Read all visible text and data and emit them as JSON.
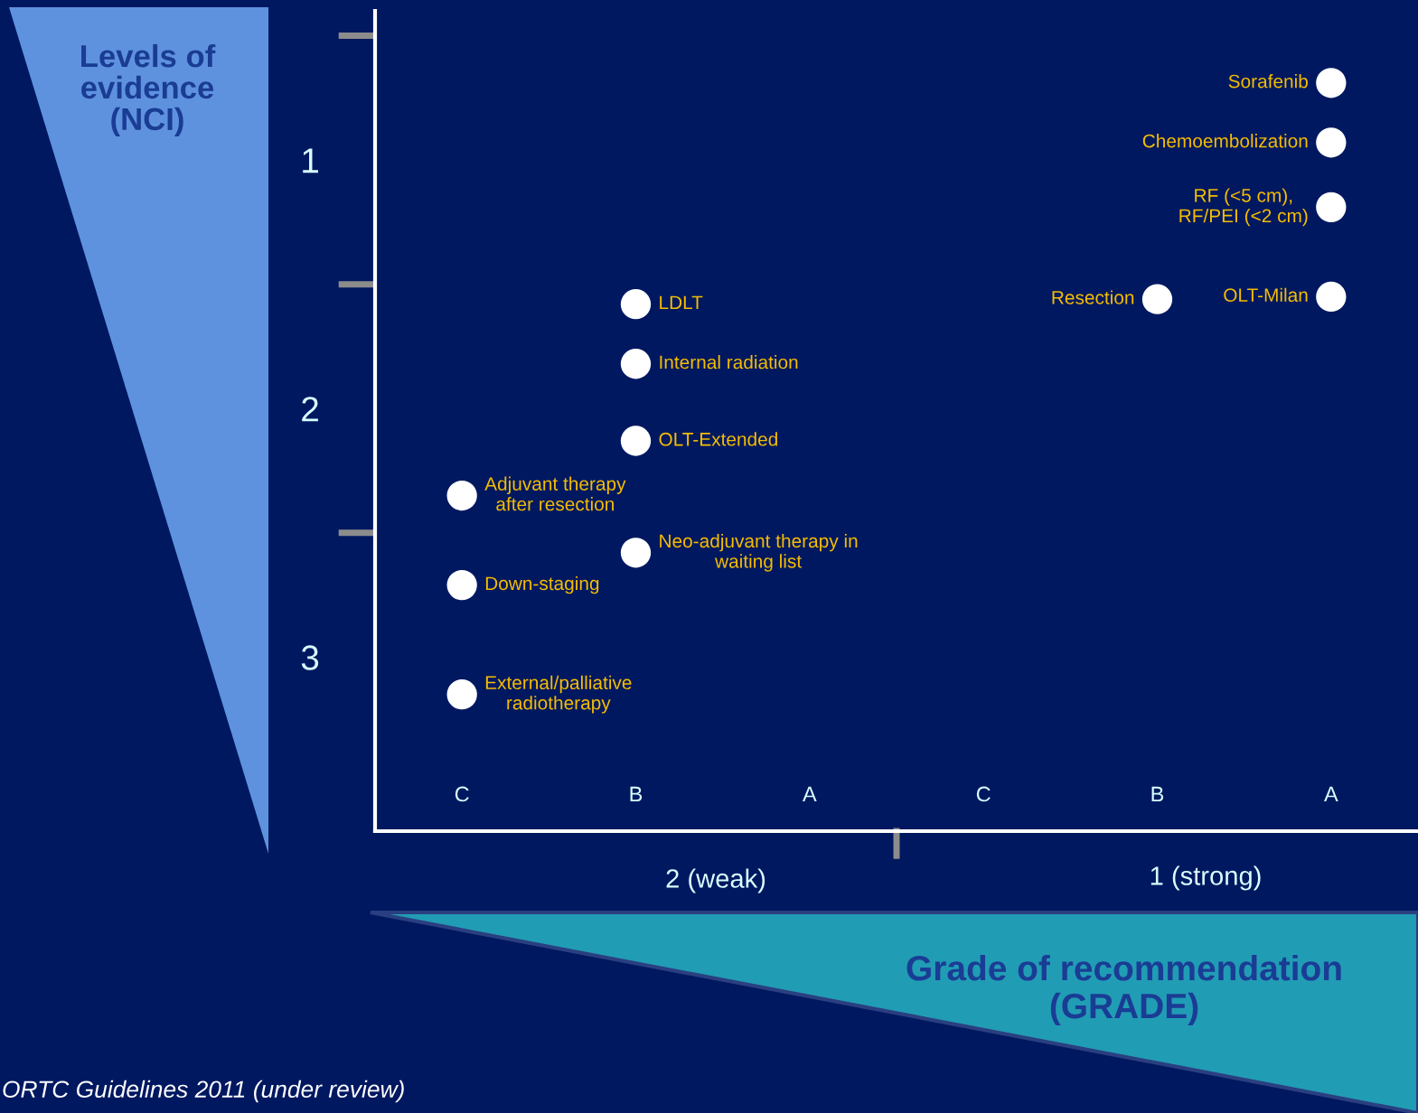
{
  "chart_data": {
    "type": "scatter",
    "xlabel": "Grade of recommendation\n(GRADE)",
    "ylabel": "Levels of\nevidence\n(NCI)",
    "categories": [
      "C",
      "B",
      "A",
      "C",
      "B",
      "A"
    ],
    "series": [
      {
        "color": "#ffffff",
        "values": [
          null,
          null,
          null,
          null,
          null,
          0.69
        ],
        "value_labels": [
          null,
          null,
          null,
          null,
          null,
          "Sorafenib"
        ]
      },
      {
        "color": "#ffffff",
        "values": [
          null,
          null,
          null,
          null,
          null,
          0.93
        ],
        "value_labels": [
          null,
          null,
          null,
          null,
          null,
          "Chemoembolization"
        ]
      },
      {
        "color": "#ffffff",
        "values": [
          null,
          null,
          null,
          null,
          null,
          1.19
        ],
        "value_labels": [
          null,
          null,
          null,
          null,
          null,
          "RF (<5 cm),\nRF/PEI (<2 cm)"
        ]
      },
      {
        "color": "#ffffff",
        "values": [
          null,
          null,
          null,
          null,
          null,
          1.55
        ],
        "value_labels": [
          null,
          null,
          null,
          null,
          null,
          "OLT-Milan"
        ]
      },
      {
        "color": "#ffffff",
        "values": [
          null,
          null,
          null,
          null,
          1.56,
          null
        ],
        "value_labels": [
          null,
          null,
          null,
          null,
          "Resection",
          null
        ]
      },
      {
        "color": "#ffffff",
        "values": [
          null,
          1.58,
          null,
          null,
          null,
          null
        ],
        "value_labels": [
          null,
          "LDLT",
          null,
          null,
          null,
          null
        ]
      },
      {
        "color": "#ffffff",
        "values": [
          null,
          1.82,
          null,
          null,
          null,
          null
        ],
        "value_labels": [
          null,
          "Internal radiation",
          null,
          null,
          null,
          null
        ]
      },
      {
        "color": "#ffffff",
        "values": [
          null,
          2.13,
          null,
          null,
          null,
          null
        ],
        "value_labels": [
          null,
          "OLT-Extended",
          null,
          null,
          null,
          null
        ]
      },
      {
        "color": "#ffffff",
        "values": [
          2.35,
          null,
          null,
          null,
          null,
          null
        ],
        "value_labels": [
          "Adjuvant therapy\nafter resection",
          null,
          null,
          null,
          null,
          null
        ]
      },
      {
        "color": "#ffffff",
        "values": [
          null,
          2.58,
          null,
          null,
          null,
          null
        ],
        "value_labels": [
          null,
          "Neo-adjuvant therapy in\nwaiting list",
          null,
          null,
          null,
          null
        ]
      },
      {
        "color": "#ffffff",
        "values": [
          2.71,
          null,
          null,
          null,
          null,
          null
        ],
        "value_labels": [
          "Down-staging",
          null,
          null,
          null,
          null,
          null
        ]
      },
      {
        "color": "#ffffff",
        "values": [
          3.15,
          null,
          null,
          null,
          null,
          null
        ],
        "value_labels": [
          "External/palliative\nradiotherapy",
          null,
          null,
          null,
          null,
          null
        ]
      }
    ],
    "marker": "circle",
    "ylim": [
      3.7,
      0.4
    ],
    "yticks": [
      1,
      2,
      3
    ],
    "annotations": [
      "2 (weak)",
      "1 (strong)",
      "ORTC Guidelines 2011 (under review)"
    ],
    "grid": false,
    "legend": false
  }
}
